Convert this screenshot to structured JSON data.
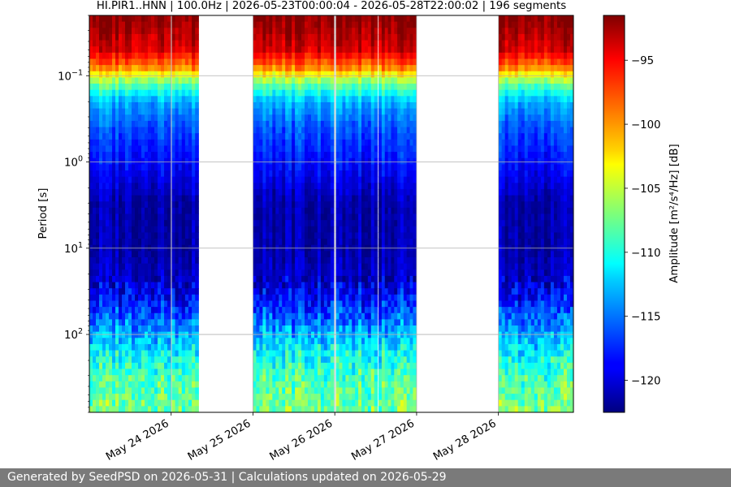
{
  "chart_data": {
    "type": "heatmap",
    "title": "HI.PIR1..HNN | 100.0Hz | 2026-05-23T00:00:04 - 2026-05-28T22:00:02 | 196 segments",
    "ylabel": "Period [s]",
    "colorbar_label": "Amplitude [m²/s⁴/Hz] [dB]",
    "colorbar_range": [
      -122.5,
      -91.5
    ],
    "colorbar_ticks": [
      -95,
      -100,
      -105,
      -110,
      -115,
      -120
    ],
    "colorbar_tick_labels": [
      "−95",
      "−100",
      "−105",
      "−110",
      "−115",
      "−120"
    ],
    "colormap": "jet",
    "y_scale": "log",
    "y_inverted": true,
    "y_range_seconds": [
      0.02,
      800
    ],
    "y_ticks": [
      0.1,
      1,
      10,
      100
    ],
    "y_tick_labels": [
      {
        "base": "10",
        "exp": "−1"
      },
      {
        "base": "10",
        "exp": "0"
      },
      {
        "base": "10",
        "exp": "1"
      },
      {
        "base": "10",
        "exp": "2"
      }
    ],
    "x_range": [
      "2026-05-23T00:00:04",
      "2026-05-28T22:00:02"
    ],
    "x_ticks": [
      "2026-05-24",
      "2026-05-25",
      "2026-05-26",
      "2026-05-27",
      "2026-05-28"
    ],
    "x_tick_labels": [
      "May 24 2026",
      "May 25 2026",
      "May 26 2026",
      "May 27 2026",
      "May 28 2026"
    ],
    "grid": true,
    "data_coverage": [
      {
        "start": "2026-05-23T00:00:04",
        "end": "2026-05-23T23:50:00"
      },
      {
        "start": "2026-05-24T00:10:00",
        "end": "2026-05-24T08:00:00"
      },
      {
        "start": "2026-05-25T00:00:00",
        "end": "2026-05-25T23:40:00"
      },
      {
        "start": "2026-05-26T00:20:00",
        "end": "2026-05-26T12:30:00"
      },
      {
        "start": "2026-05-26T12:50:00",
        "end": "2026-05-26T23:50:00"
      },
      {
        "start": "2026-05-28T00:00:00",
        "end": "2026-05-28T22:00:02"
      }
    ],
    "amplitude_profile_db": [
      {
        "period_s": 0.02,
        "db": -91.5
      },
      {
        "period_s": 0.03,
        "db": -92.5
      },
      {
        "period_s": 0.05,
        "db": -94
      },
      {
        "period_s": 0.08,
        "db": -99
      },
      {
        "period_s": 0.12,
        "db": -107
      },
      {
        "period_s": 0.2,
        "db": -113
      },
      {
        "period_s": 0.4,
        "db": -116
      },
      {
        "period_s": 1,
        "db": -118
      },
      {
        "period_s": 3,
        "db": -121
      },
      {
        "period_s": 10,
        "db": -121
      },
      {
        "period_s": 25,
        "db": -120
      },
      {
        "period_s": 50,
        "db": -117
      },
      {
        "period_s": 100,
        "db": -113
      },
      {
        "period_s": 200,
        "db": -110
      },
      {
        "period_s": 400,
        "db": -108
      },
      {
        "period_s": 800,
        "db": -107
      }
    ]
  },
  "footer": {
    "text": "Generated by SeedPSD on 2026-05-31 | Calculations updated on 2026-05-29"
  }
}
